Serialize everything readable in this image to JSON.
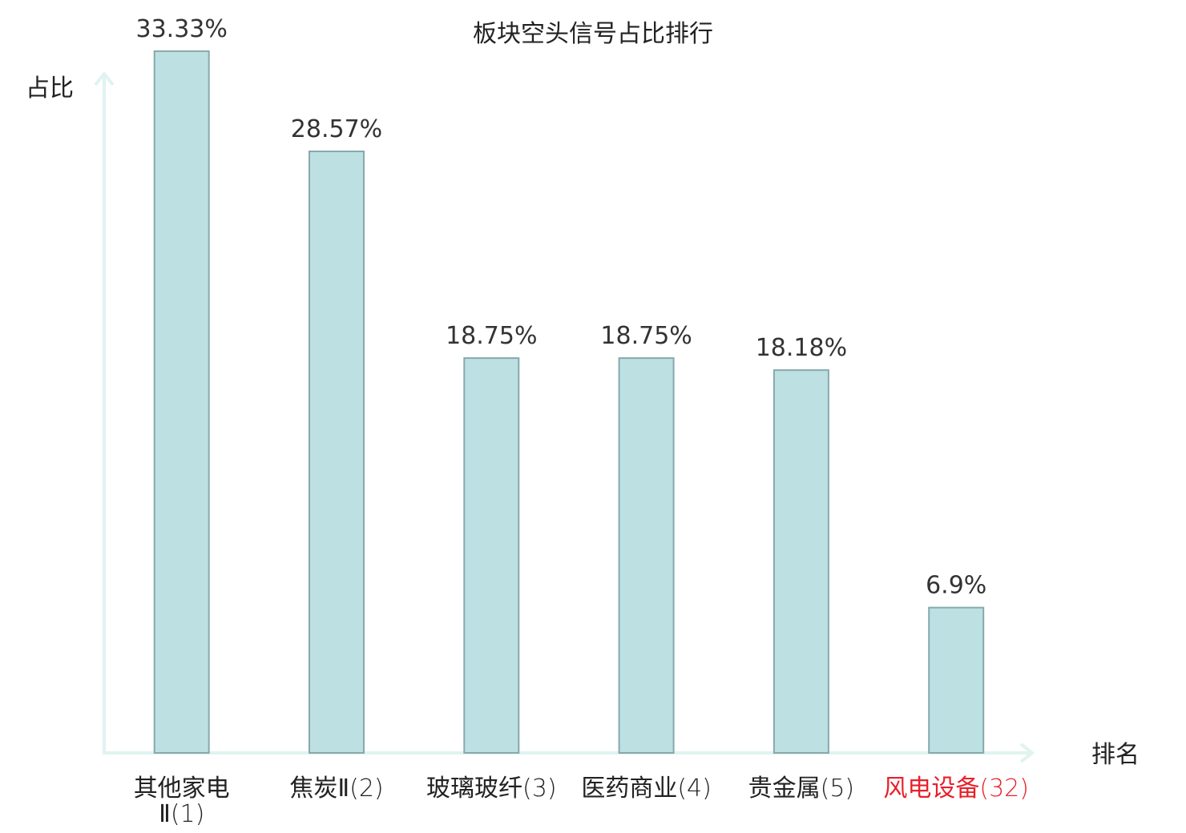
{
  "chart_data": {
    "type": "bar",
    "title": "板块空头信号占比排行",
    "ylabel": "占比",
    "xlabel": "排名",
    "categories": [
      {
        "name_lines": [
          "其他家电",
          "Ⅱ"
        ],
        "rank": "(1)",
        "highlight": false
      },
      {
        "name_lines": [
          "焦炭Ⅱ"
        ],
        "rank": "(2)",
        "highlight": false
      },
      {
        "name_lines": [
          "玻璃玻纤"
        ],
        "rank": "(3)",
        "highlight": false
      },
      {
        "name_lines": [
          "医药商业"
        ],
        "rank": "(4)",
        "highlight": false
      },
      {
        "name_lines": [
          "贵金属"
        ],
        "rank": "(5)",
        "highlight": false
      },
      {
        "name_lines": [
          "风电设备"
        ],
        "rank": "(32)",
        "highlight": true
      }
    ],
    "values": [
      33.33,
      28.57,
      18.75,
      18.75,
      18.18,
      6.9
    ],
    "value_labels": [
      "33.33%",
      "28.57%",
      "18.75%",
      "18.75%",
      "18.18%",
      "6.9%"
    ],
    "ylim": [
      0,
      35
    ],
    "grid": false,
    "colors": {
      "bar_fill": "#bde0e3",
      "bar_stroke": "#86a9ad",
      "axis": "#e0f3f0",
      "text": "#222222",
      "value_text": "#333333",
      "highlight": "#e8202a"
    }
  }
}
